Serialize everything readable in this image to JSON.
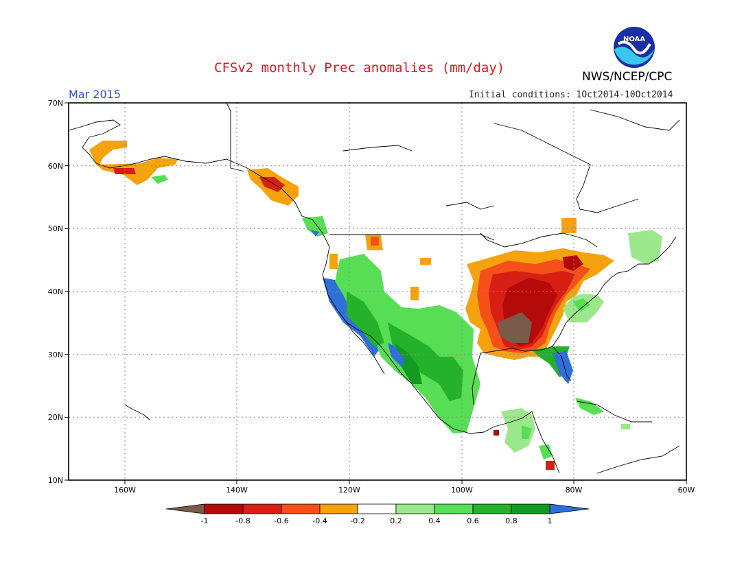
{
  "header": {
    "title": "CFSv2 monthly Prec anomalies (mm/day)",
    "agency": "NWS/NCEP/CPC",
    "logo_text": "NOAA",
    "month": "Mar 2015",
    "initial_conditions": "Initial conditions: 1Oct2014-10Oct2014"
  },
  "map": {
    "lat_labels": [
      "70N",
      "60N",
      "50N",
      "40N",
      "30N",
      "20N",
      "10N"
    ],
    "lon_labels": [
      "160W",
      "140W",
      "120W",
      "100W",
      "80W",
      "60W"
    ],
    "grid": true
  },
  "legend": {
    "labels": [
      "-1",
      "-0.8",
      "-0.6",
      "-0.4",
      "-0.2",
      "0.2",
      "0.4",
      "0.6",
      "0.8",
      "1"
    ],
    "colors": {
      "lt_m1": "#7a5a48",
      "m1_m08": "#b40a0a",
      "m08_m06": "#d81f14",
      "m06_m04": "#f5501a",
      "m04_m02": "#f5a20f",
      "m02_02": "#ffffff",
      "p02_04": "#9be88c",
      "p04_06": "#57de55",
      "p06_08": "#24b22a",
      "p08_1": "#129a22",
      "gt_1": "#2e6fd9"
    }
  }
}
